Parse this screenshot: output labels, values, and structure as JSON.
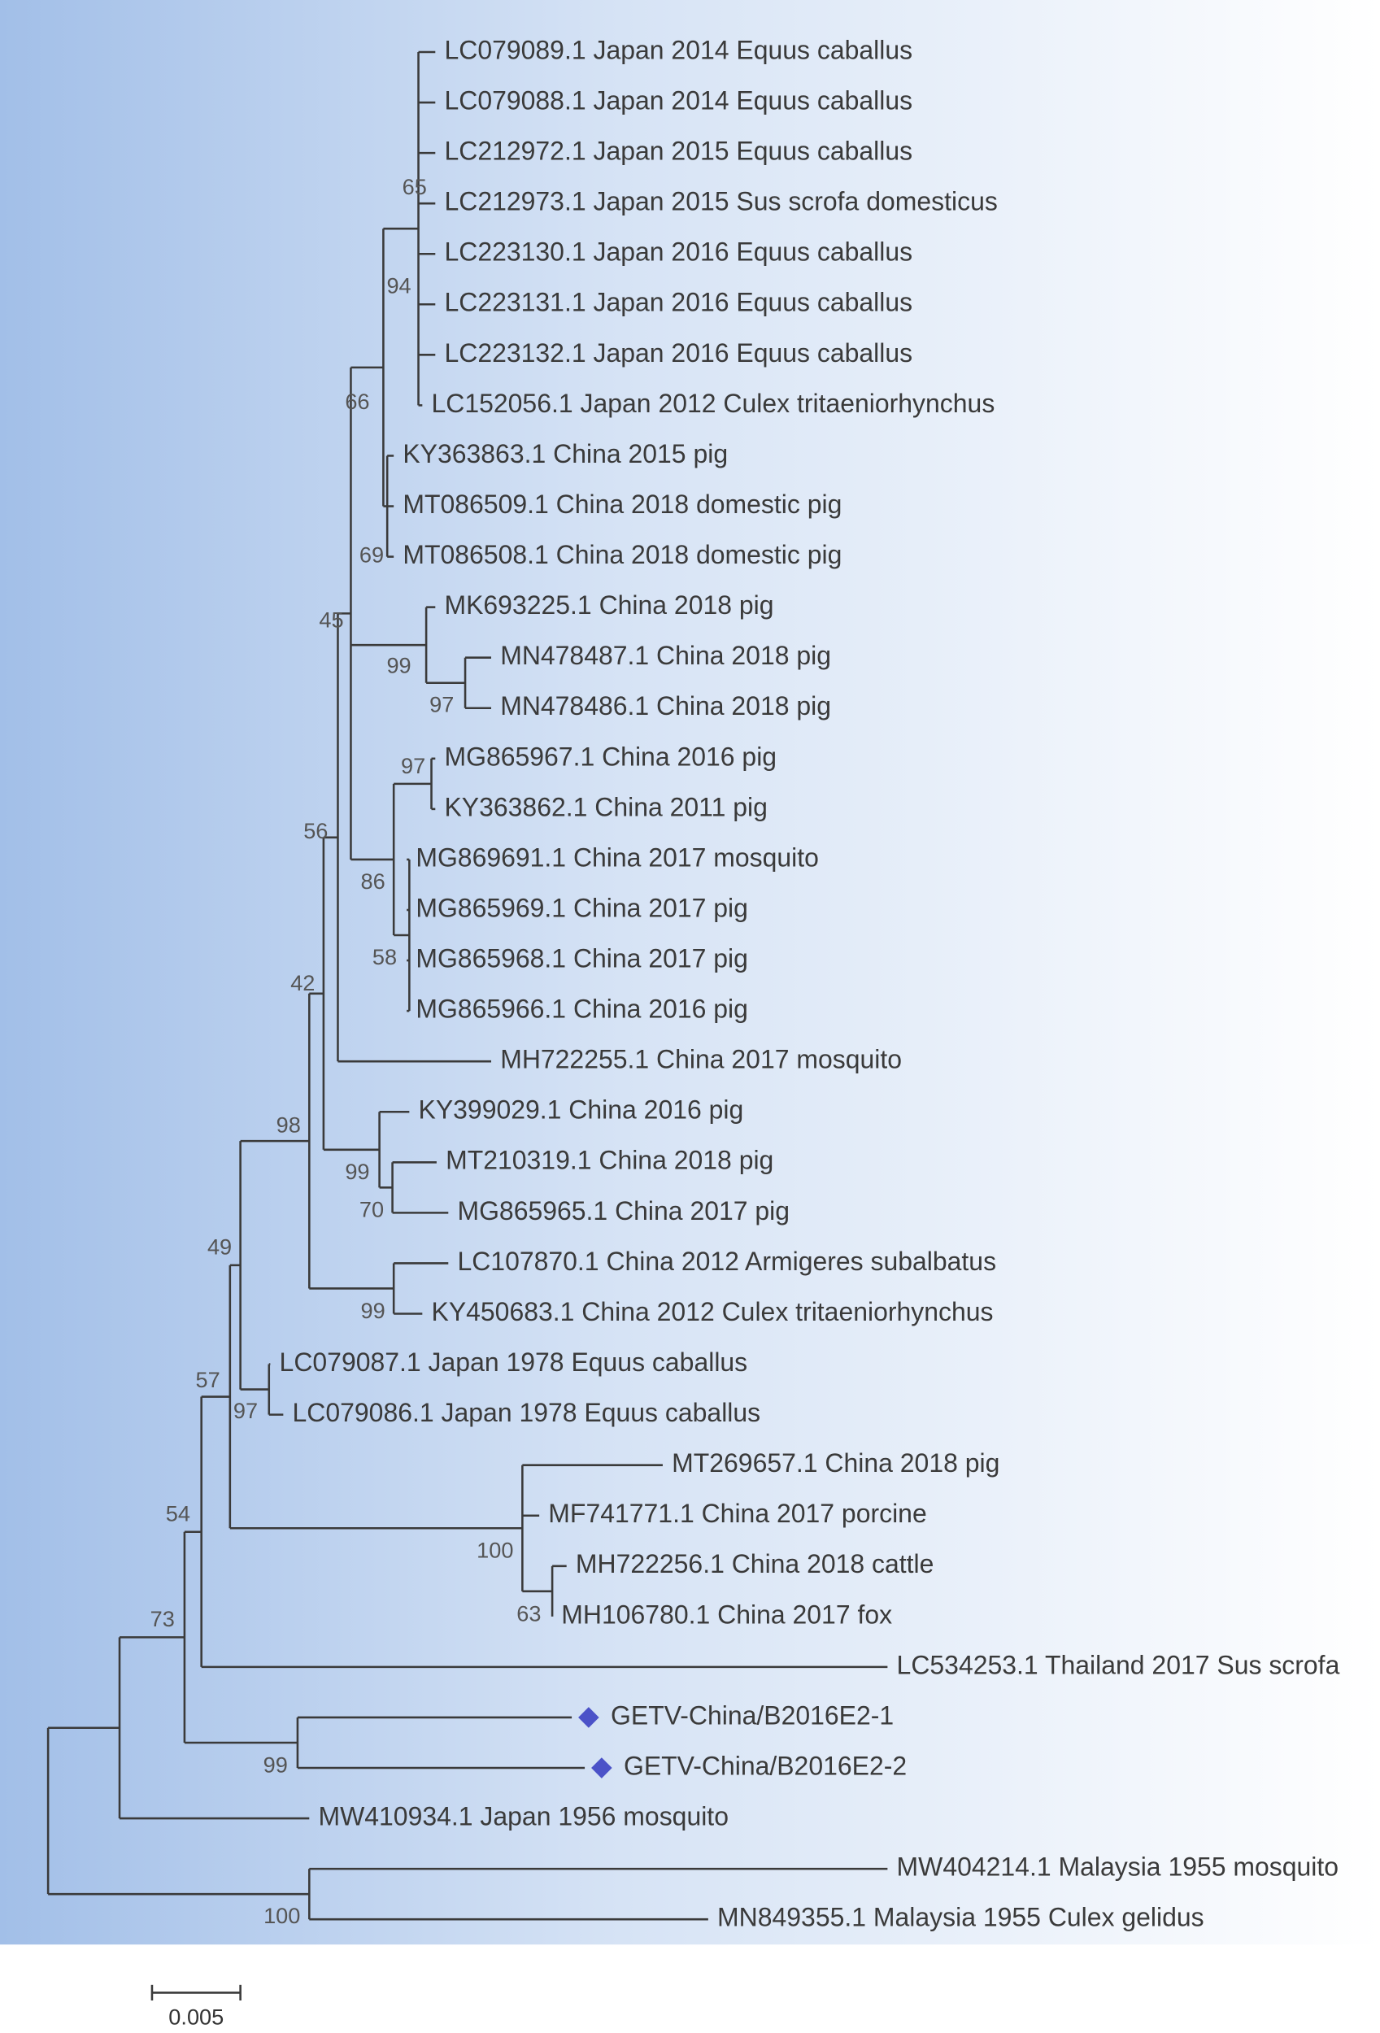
{
  "leaves": [
    "LC079089.1 Japan 2014 Equus caballus",
    "LC079088.1 Japan 2014 Equus caballus",
    "LC212972.1 Japan 2015 Equus caballus",
    "LC212973.1 Japan 2015 Sus scrofa domesticus",
    "LC223130.1 Japan 2016 Equus caballus",
    "LC223131.1 Japan 2016 Equus caballus",
    "LC223132.1 Japan 2016 Equus caballus",
    "LC152056.1 Japan 2012 Culex tritaeniorhynchus",
    "KY363863.1 China 2015 pig",
    "MT086509.1 China 2018 domestic pig",
    "MT086508.1 China 2018 domestic pig",
    "MK693225.1 China 2018 pig",
    "MN478487.1 China 2018 pig",
    "MN478486.1 China 2018 pig",
    "MG865967.1 China 2016 pig",
    "KY363862.1 China 2011 pig",
    "MG869691.1 China 2017 mosquito",
    "MG865969.1 China 2017 pig",
    "MG865968.1 China 2017 pig",
    "MG865966.1 China 2016 pig",
    "MH722255.1 China 2017 mosquito",
    "KY399029.1 China 2016 pig",
    "MT210319.1 China 2018 pig",
    "MG865965.1 China 2017 pig",
    "LC107870.1 China 2012 Armigeres subalbatus",
    "KY450683.1 China 2012 Culex tritaeniorhynchus",
    "LC079087.1 Japan 1978 Equus caballus",
    "LC079086.1 Japan 1978 Equus caballus",
    "MT269657.1 China 2018 pig",
    "MF741771.1 China 2017 porcine",
    "MH722256.1 China 2018 cattle",
    "MH106780.1 China 2017 fox",
    "LC534253.1 Thailand 2017 Sus scrofa",
    "GETV-China/B2016E2-1",
    "GETV-China/B2016E2-2",
    "MW410934.1 Japan 1956 mosquito",
    "MW404214.1 Malaysia 1955 mosquito",
    "MN849355.1 Malaysia 1955 Culex gelidus"
  ],
  "bootstrap": [
    65,
    94,
    66,
    69,
    45,
    99,
    97,
    97,
    56,
    86,
    58,
    42,
    98,
    99,
    70,
    49,
    99,
    57,
    97,
    54,
    100,
    73,
    63,
    99,
    100
  ],
  "scale_bar": "0.005"
}
